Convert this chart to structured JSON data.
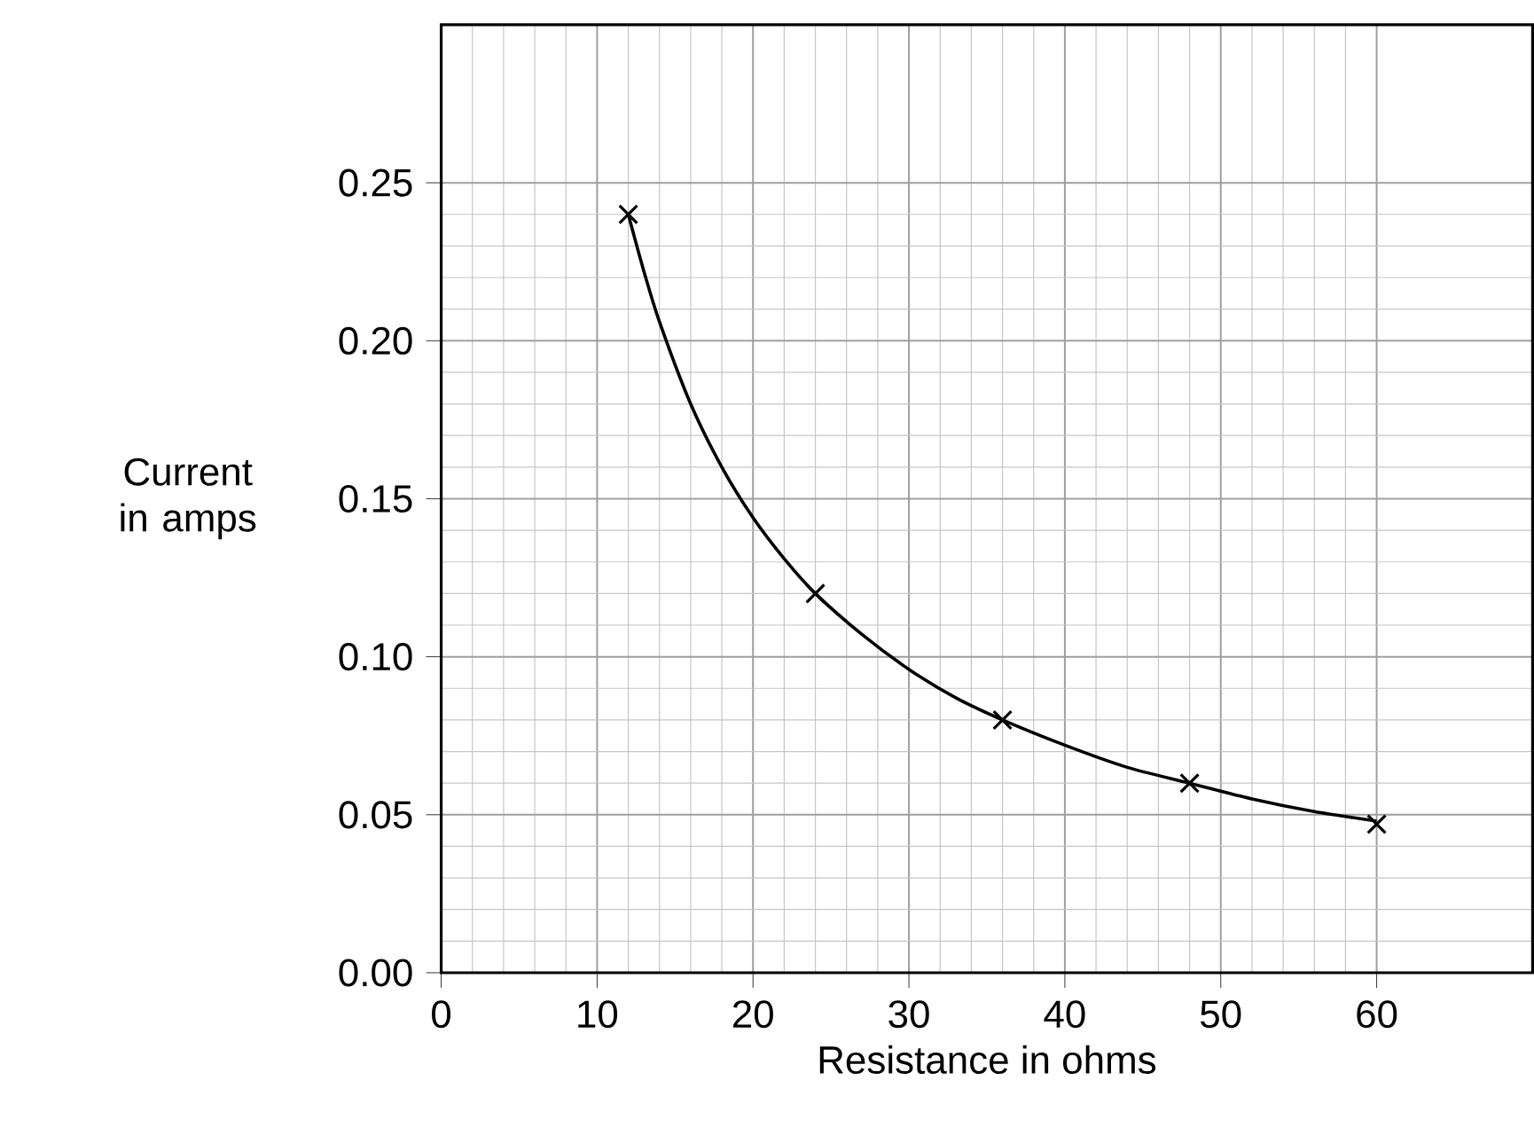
{
  "chart_data": {
    "type": "scatter",
    "xlabel": "Resistance in ohms",
    "ylabel": "Current in amps",
    "xlim": [
      0,
      70
    ],
    "ylim": [
      0,
      0.3
    ],
    "xticks": [
      0,
      10,
      20,
      30,
      40,
      50,
      60
    ],
    "yticks": [
      {
        "value": 0,
        "label": "0.00"
      },
      {
        "value": 0.05,
        "label": "0.05"
      },
      {
        "value": 0.1,
        "label": "0.10"
      },
      {
        "value": 0.15,
        "label": "0.15"
      },
      {
        "value": 0.2,
        "label": "0.20"
      },
      {
        "value": 0.25,
        "label": "0.25"
      }
    ],
    "grid": true,
    "series": [
      {
        "type": "line",
        "marker": "none",
        "line_style": "solid",
        "color": "#000000",
        "x": [
          12,
          13,
          14,
          16,
          18,
          20,
          22,
          24,
          27,
          30,
          33,
          36,
          40,
          44,
          48,
          52,
          56,
          60
        ],
        "values": [
          0.24,
          0.222,
          0.206,
          0.18,
          0.16,
          0.144,
          0.131,
          0.12,
          0.107,
          0.096,
          0.087,
          0.08,
          0.072,
          0.065,
          0.06,
          0.055,
          0.051,
          0.048
        ]
      },
      {
        "marker": "cross",
        "color": "#000000",
        "x": [
          12,
          24,
          36,
          48,
          60
        ],
        "values": [
          0.24,
          0.12,
          0.08,
          0.06,
          0.047
        ]
      }
    ]
  }
}
